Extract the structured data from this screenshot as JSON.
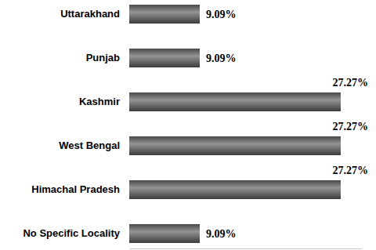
{
  "chart_data": {
    "type": "bar",
    "orientation": "horizontal",
    "categories": [
      "Uttarakhand",
      "Punjab",
      "Kashmir",
      "West Bengal",
      "Himachal Pradesh",
      "No Specific Locality"
    ],
    "values": [
      9.09,
      9.09,
      27.27,
      27.27,
      27.27,
      9.09
    ],
    "value_labels": [
      "9.09%",
      "9.09%",
      "27.27%",
      "27.27%",
      "27.27%",
      "9.09%"
    ],
    "color": "#5a5a5a",
    "xlim": [
      0,
      30
    ],
    "data_labels": true,
    "tick_labels": "y"
  }
}
